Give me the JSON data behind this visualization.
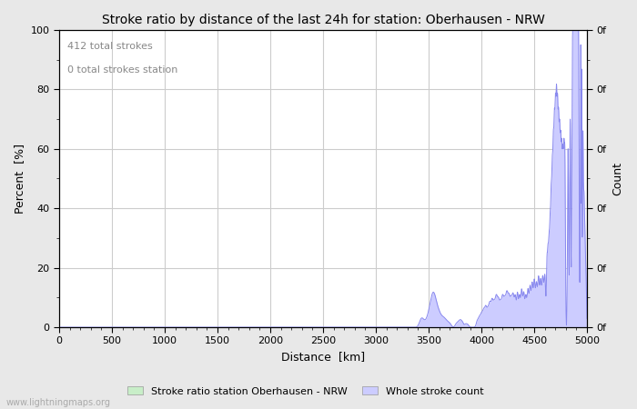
{
  "title": "Stroke ratio by distance of the last 24h for station: Oberhausen - NRW",
  "xlabel": "Distance  [km]",
  "ylabel": "Percent  [%]",
  "ylabel_right": "Count",
  "annotation_line1": "412 total strokes",
  "annotation_line2": "0 total strokes station",
  "xlim": [
    0,
    5000
  ],
  "ylim": [
    0,
    100
  ],
  "xticks": [
    0,
    500,
    1000,
    1500,
    2000,
    2500,
    3000,
    3500,
    4000,
    4500,
    5000
  ],
  "yticks_left": [
    0,
    20,
    40,
    60,
    80,
    100
  ],
  "right_ytick_positions": [
    0,
    20,
    40,
    60,
    80,
    100
  ],
  "right_ytick_labels": [
    "0f",
    "0f",
    "0f",
    "0f",
    "0f",
    "0f"
  ],
  "legend_items": [
    {
      "label": "Stroke ratio station Oberhausen - NRW",
      "color": "#c8eec8"
    },
    {
      "label": "Whole stroke count",
      "color": "#ccccff"
    }
  ],
  "watermark": "www.lightningmaps.org",
  "bg_color": "#e8e8e8",
  "plot_bg_color": "#ffffff",
  "grid_color": "#cccccc",
  "line_color": "#8888ee",
  "fill_color": "#ccccff",
  "title_fontsize": 10,
  "axis_fontsize": 9,
  "tick_fontsize": 8,
  "annotation_color": "#888888"
}
